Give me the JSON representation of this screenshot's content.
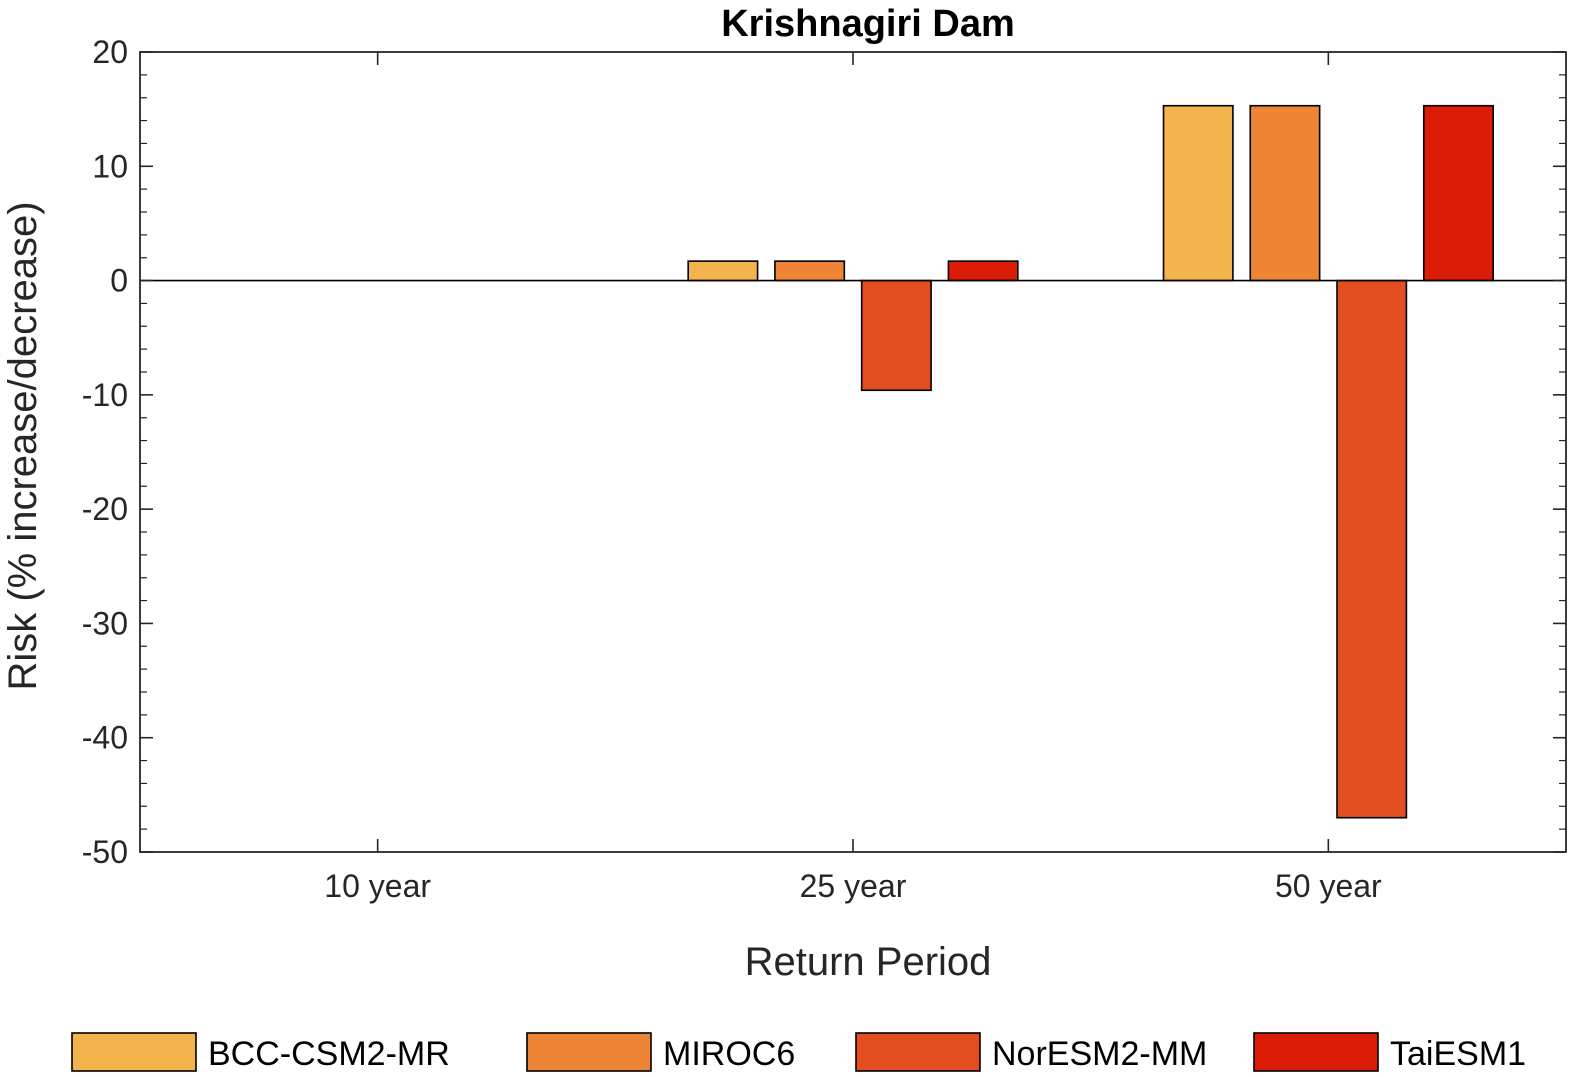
{
  "chart_data": {
    "type": "bar",
    "title": "Krishnagiri Dam",
    "xlabel": "Return Period",
    "ylabel": "Risk (% increase/decrease)",
    "categories": [
      "10 year",
      "25 year",
      "50 year"
    ],
    "ylim": [
      -50,
      20
    ],
    "yticks": [
      20,
      10,
      0,
      -10,
      -20,
      -30,
      -40,
      -50
    ],
    "grid": false,
    "legend_position": "bottom",
    "series": [
      {
        "name": "BCC-CSM2-MR",
        "color": "#F3B34D",
        "values": [
          0,
          1.7,
          15.3
        ]
      },
      {
        "name": "MIROC6",
        "color": "#EE8436",
        "values": [
          0,
          1.7,
          15.3
        ]
      },
      {
        "name": "NorESM2-MM",
        "color": "#E24E1F",
        "values": [
          0,
          -9.6,
          -47.0
        ]
      },
      {
        "name": "TaiESM1",
        "color": "#DB1D08",
        "values": [
          0,
          1.7,
          15.3
        ]
      }
    ]
  }
}
